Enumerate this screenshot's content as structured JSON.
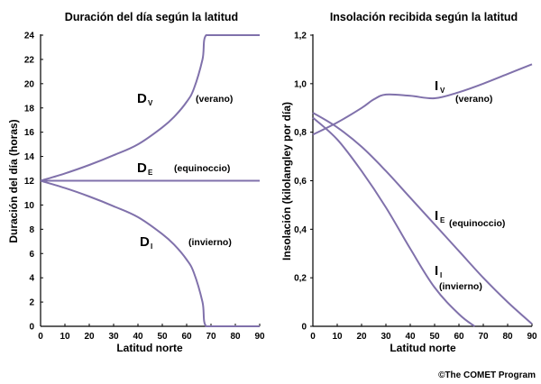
{
  "colors": {
    "curve": "#8071ab",
    "axis": "#000000"
  },
  "credit": "©The COMET Program",
  "chart_data": [
    {
      "type": "line",
      "title": "Duración del día según la latitud",
      "xlabel": "Latitud norte",
      "ylabel": "Duración del día (horas)",
      "xlim": [
        0,
        90
      ],
      "ylim": [
        0,
        24
      ],
      "xticks": [
        0,
        10,
        20,
        30,
        40,
        50,
        60,
        70,
        80,
        90
      ],
      "yticks": [
        0,
        2,
        4,
        6,
        8,
        10,
        12,
        14,
        16,
        18,
        20,
        22,
        24
      ],
      "ytick_labels": [
        "0",
        "2",
        "4",
        "6",
        "8",
        "10",
        "12",
        "14",
        "16",
        "18",
        "20",
        "22",
        "24"
      ],
      "grid": false,
      "series": [
        {
          "key": "V",
          "x": [
            0,
            10,
            20,
            30,
            40,
            50,
            55,
            60,
            63,
            66.5,
            68,
            75,
            80,
            90
          ],
          "y": [
            12,
            12.6,
            13.3,
            14.1,
            15.0,
            16.4,
            17.3,
            18.5,
            19.6,
            22,
            24,
            24,
            24,
            24
          ]
        },
        {
          "key": "E",
          "x": [
            0,
            90
          ],
          "y": [
            12,
            12
          ]
        },
        {
          "key": "I",
          "x": [
            0,
            10,
            20,
            30,
            40,
            50,
            55,
            60,
            63,
            66.5,
            68,
            75,
            80,
            90
          ],
          "y": [
            12,
            11.4,
            10.7,
            9.9,
            9.0,
            7.6,
            6.7,
            5.5,
            4.4,
            2,
            0,
            0,
            0,
            0
          ]
        }
      ],
      "annotations": [
        {
          "main": "D",
          "sub": "V",
          "note": "(verano)"
        },
        {
          "main": "D",
          "sub": "E",
          "note": "(equinoccio)"
        },
        {
          "main": "D",
          "sub": "I",
          "note": "(invierno)"
        }
      ]
    },
    {
      "type": "line",
      "title": "Insolación recibida según la latitud",
      "xlabel": "Latitud norte",
      "ylabel": "Insolación (kilolangley por día)",
      "xlim": [
        0,
        90
      ],
      "ylim": [
        0,
        1.2
      ],
      "xticks": [
        0,
        10,
        20,
        30,
        40,
        50,
        60,
        70,
        80,
        90
      ],
      "yticks": [
        0,
        0.2,
        0.4,
        0.6,
        0.8,
        1.0,
        1.2
      ],
      "ytick_labels": [
        "0",
        "0,2",
        "0,4",
        "0,6",
        "0,8",
        "1,0",
        "1,2"
      ],
      "grid": false,
      "series": [
        {
          "key": "V",
          "x": [
            0,
            10,
            20,
            25,
            30,
            40,
            50,
            60,
            70,
            80,
            90
          ],
          "y": [
            0.79,
            0.84,
            0.9,
            0.935,
            0.955,
            0.95,
            0.94,
            0.965,
            1.0,
            1.04,
            1.08
          ]
        },
        {
          "key": "E",
          "x": [
            0,
            10,
            20,
            30,
            40,
            50,
            60,
            70,
            80,
            90
          ],
          "y": [
            0.88,
            0.82,
            0.74,
            0.64,
            0.53,
            0.42,
            0.31,
            0.2,
            0.1,
            0.01
          ]
        },
        {
          "key": "I",
          "x": [
            0,
            10,
            20,
            30,
            40,
            50,
            60,
            66.5
          ],
          "y": [
            0.86,
            0.77,
            0.64,
            0.49,
            0.32,
            0.16,
            0.05,
            0.0
          ]
        }
      ],
      "annotations": [
        {
          "main": "I",
          "sub": "V",
          "note": "(verano)"
        },
        {
          "main": "I",
          "sub": "E",
          "note": "(equinoccio)"
        },
        {
          "main": "I",
          "sub": "I",
          "note": "(invierno)"
        }
      ]
    }
  ]
}
